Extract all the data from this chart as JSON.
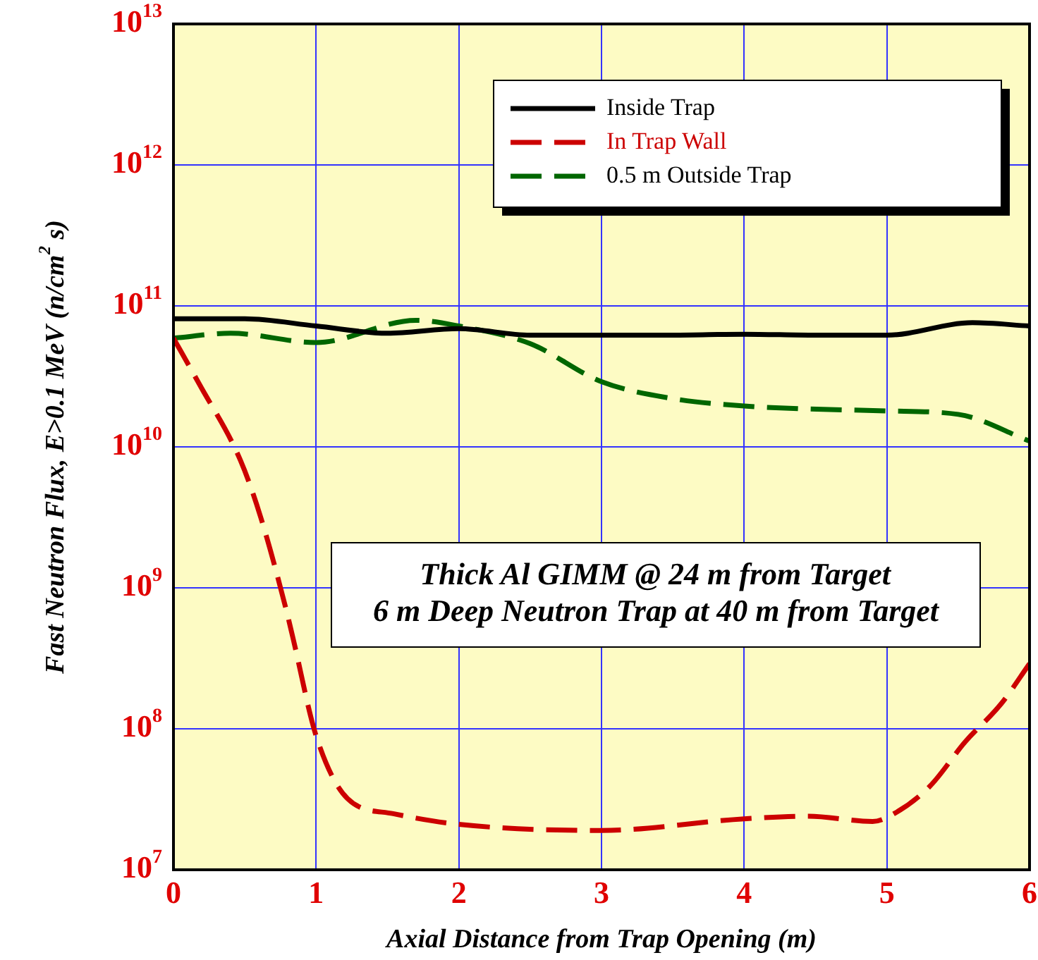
{
  "chart_data": {
    "type": "line",
    "xlabel": "Axial Distance from Trap Opening (m)",
    "ylabel": "Fast Neutron Flux, E>0.1 MeV (n/cm$^{2}$ s)",
    "annotations": [
      "Thick Al GIMM @ 24 m from Target",
      "6 m Deep Neutron Trap at 40 m from Target"
    ],
    "log": "y",
    "grid": true,
    "legend": "top right",
    "marker": "none",
    "xlim": [
      0,
      6
    ],
    "xticks": [
      0,
      1,
      2,
      3,
      4,
      5,
      6
    ],
    "ylim": [
      10000000.0,
      10000000000000.0
    ],
    "yticks": [
      {
        "value": 10000000.0,
        "label": "10$^{7}$"
      },
      {
        "value": 100000000.0,
        "label": "10$^{8}$"
      },
      {
        "value": 1000000000.0,
        "label": "10$^{9}$"
      },
      {
        "value": 10000000000.0,
        "label": "10$^{10}$"
      },
      {
        "value": 100000000000.0,
        "label": "10$^{11}$"
      },
      {
        "value": 1000000000000.0,
        "label": "10$^{12}$"
      },
      {
        "value": 10000000000000.0,
        "label": "10$^{13}$"
      }
    ],
    "series": [
      {
        "name": "Inside Trap",
        "color": "#000000",
        "line_style": "solid",
        "x": [
          0,
          0.5,
          1,
          1.5,
          2,
          2.5,
          3,
          3.5,
          4,
          4.5,
          5,
          5.6,
          6
        ],
        "values": [
          81000000000.0,
          81000000000.0,
          72000000000.0,
          64000000000.0,
          69000000000.0,
          62000000000.0,
          62000000000.0,
          62000000000.0,
          63000000000.0,
          62000000000.0,
          62000000000.0,
          76000000000.0,
          72000000000.0
        ]
      },
      {
        "name": "In Trap Wall",
        "color": "#cc0000",
        "line_style": "dashed",
        "x": [
          0,
          0.18,
          0.47,
          0.61,
          0.79,
          0.84,
          1.0,
          1.22,
          1.54,
          2.0,
          3.0,
          4.0,
          4.45,
          4.9,
          5.05,
          5.3,
          5.55,
          5.8,
          6.0
        ],
        "values": [
          59000000000.0,
          28000000000.0,
          8000000000.0,
          3200000000.0,
          700000000.0,
          430000000.0,
          89000000.0,
          32000000.0,
          25000000.0,
          21000000.0,
          19000000.0,
          23000000.0,
          24000000.0,
          22000000.0,
          25000000.0,
          39000000.0,
          81000000.0,
          150000000.0,
          290000000.0
        ]
      },
      {
        "name": "0.5 m Outside Trap",
        "color": "#006600",
        "line_style": "dashed",
        "x": [
          0,
          0.4,
          1,
          1.7,
          2,
          2.5,
          3,
          3.5,
          4,
          5,
          5.5,
          6
        ],
        "values": [
          59000000000.0,
          64000000000.0,
          55000000000.0,
          79000000000.0,
          72000000000.0,
          54000000000.0,
          29000000000.0,
          22000000000.0,
          19500000000.0,
          18000000000.0,
          17000000000.0,
          11000000000.0
        ]
      }
    ]
  }
}
